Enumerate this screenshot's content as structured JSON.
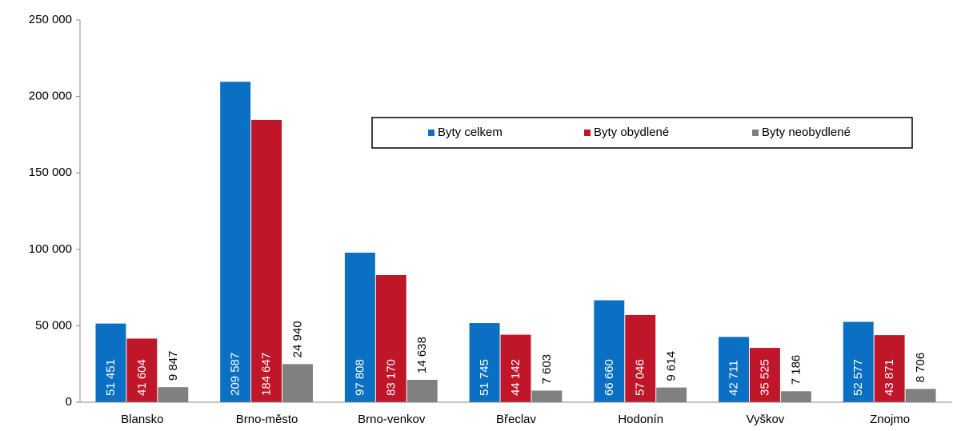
{
  "chart_data": {
    "type": "bar",
    "categories": [
      "Blansko",
      "Brno-město",
      "Brno-venkov",
      "Břeclav",
      "Hodonín",
      "Vyškov",
      "Znojmo"
    ],
    "series": [
      {
        "name": "Byty celkem",
        "color": "#0b70c4",
        "label_color": "#ffffff",
        "label_position": "inside_base",
        "values": [
          51451,
          209587,
          97808,
          51745,
          66660,
          42711,
          52577
        ],
        "value_labels": [
          "51 451",
          "209 587",
          "97 808",
          "51 745",
          "66 660",
          "42 711",
          "52 577"
        ]
      },
      {
        "name": "Byty obydlené",
        "color": "#c0162a",
        "label_color": "#ffffff",
        "label_position": "inside_base",
        "values": [
          41604,
          184647,
          83170,
          44142,
          57046,
          35525,
          43871
        ],
        "value_labels": [
          "41 604",
          "184 647",
          "83 170",
          "44 142",
          "57 046",
          "35 525",
          "43 871"
        ]
      },
      {
        "name": "Byty neobydlené",
        "color": "#808080",
        "label_color": "#000000",
        "label_position": "outside_end",
        "values": [
          9847,
          24940,
          14638,
          7603,
          9614,
          7186,
          8706
        ],
        "value_labels": [
          "9 847",
          "24 940",
          "14 638",
          "7 603",
          "9 614",
          "7 186",
          "8 706"
        ]
      }
    ],
    "ylim": [
      0,
      250000
    ],
    "yticks": [
      0,
      {
        "value": 50000,
        "label": "50 000"
      },
      {
        "value": 100000,
        "label": "100 000"
      },
      {
        "value": 150000,
        "label": "150 000"
      },
      {
        "value": 200000,
        "label": "200 000"
      },
      {
        "value": 250000,
        "label": "250 000"
      }
    ],
    "grid": false,
    "legend": "top-right"
  }
}
